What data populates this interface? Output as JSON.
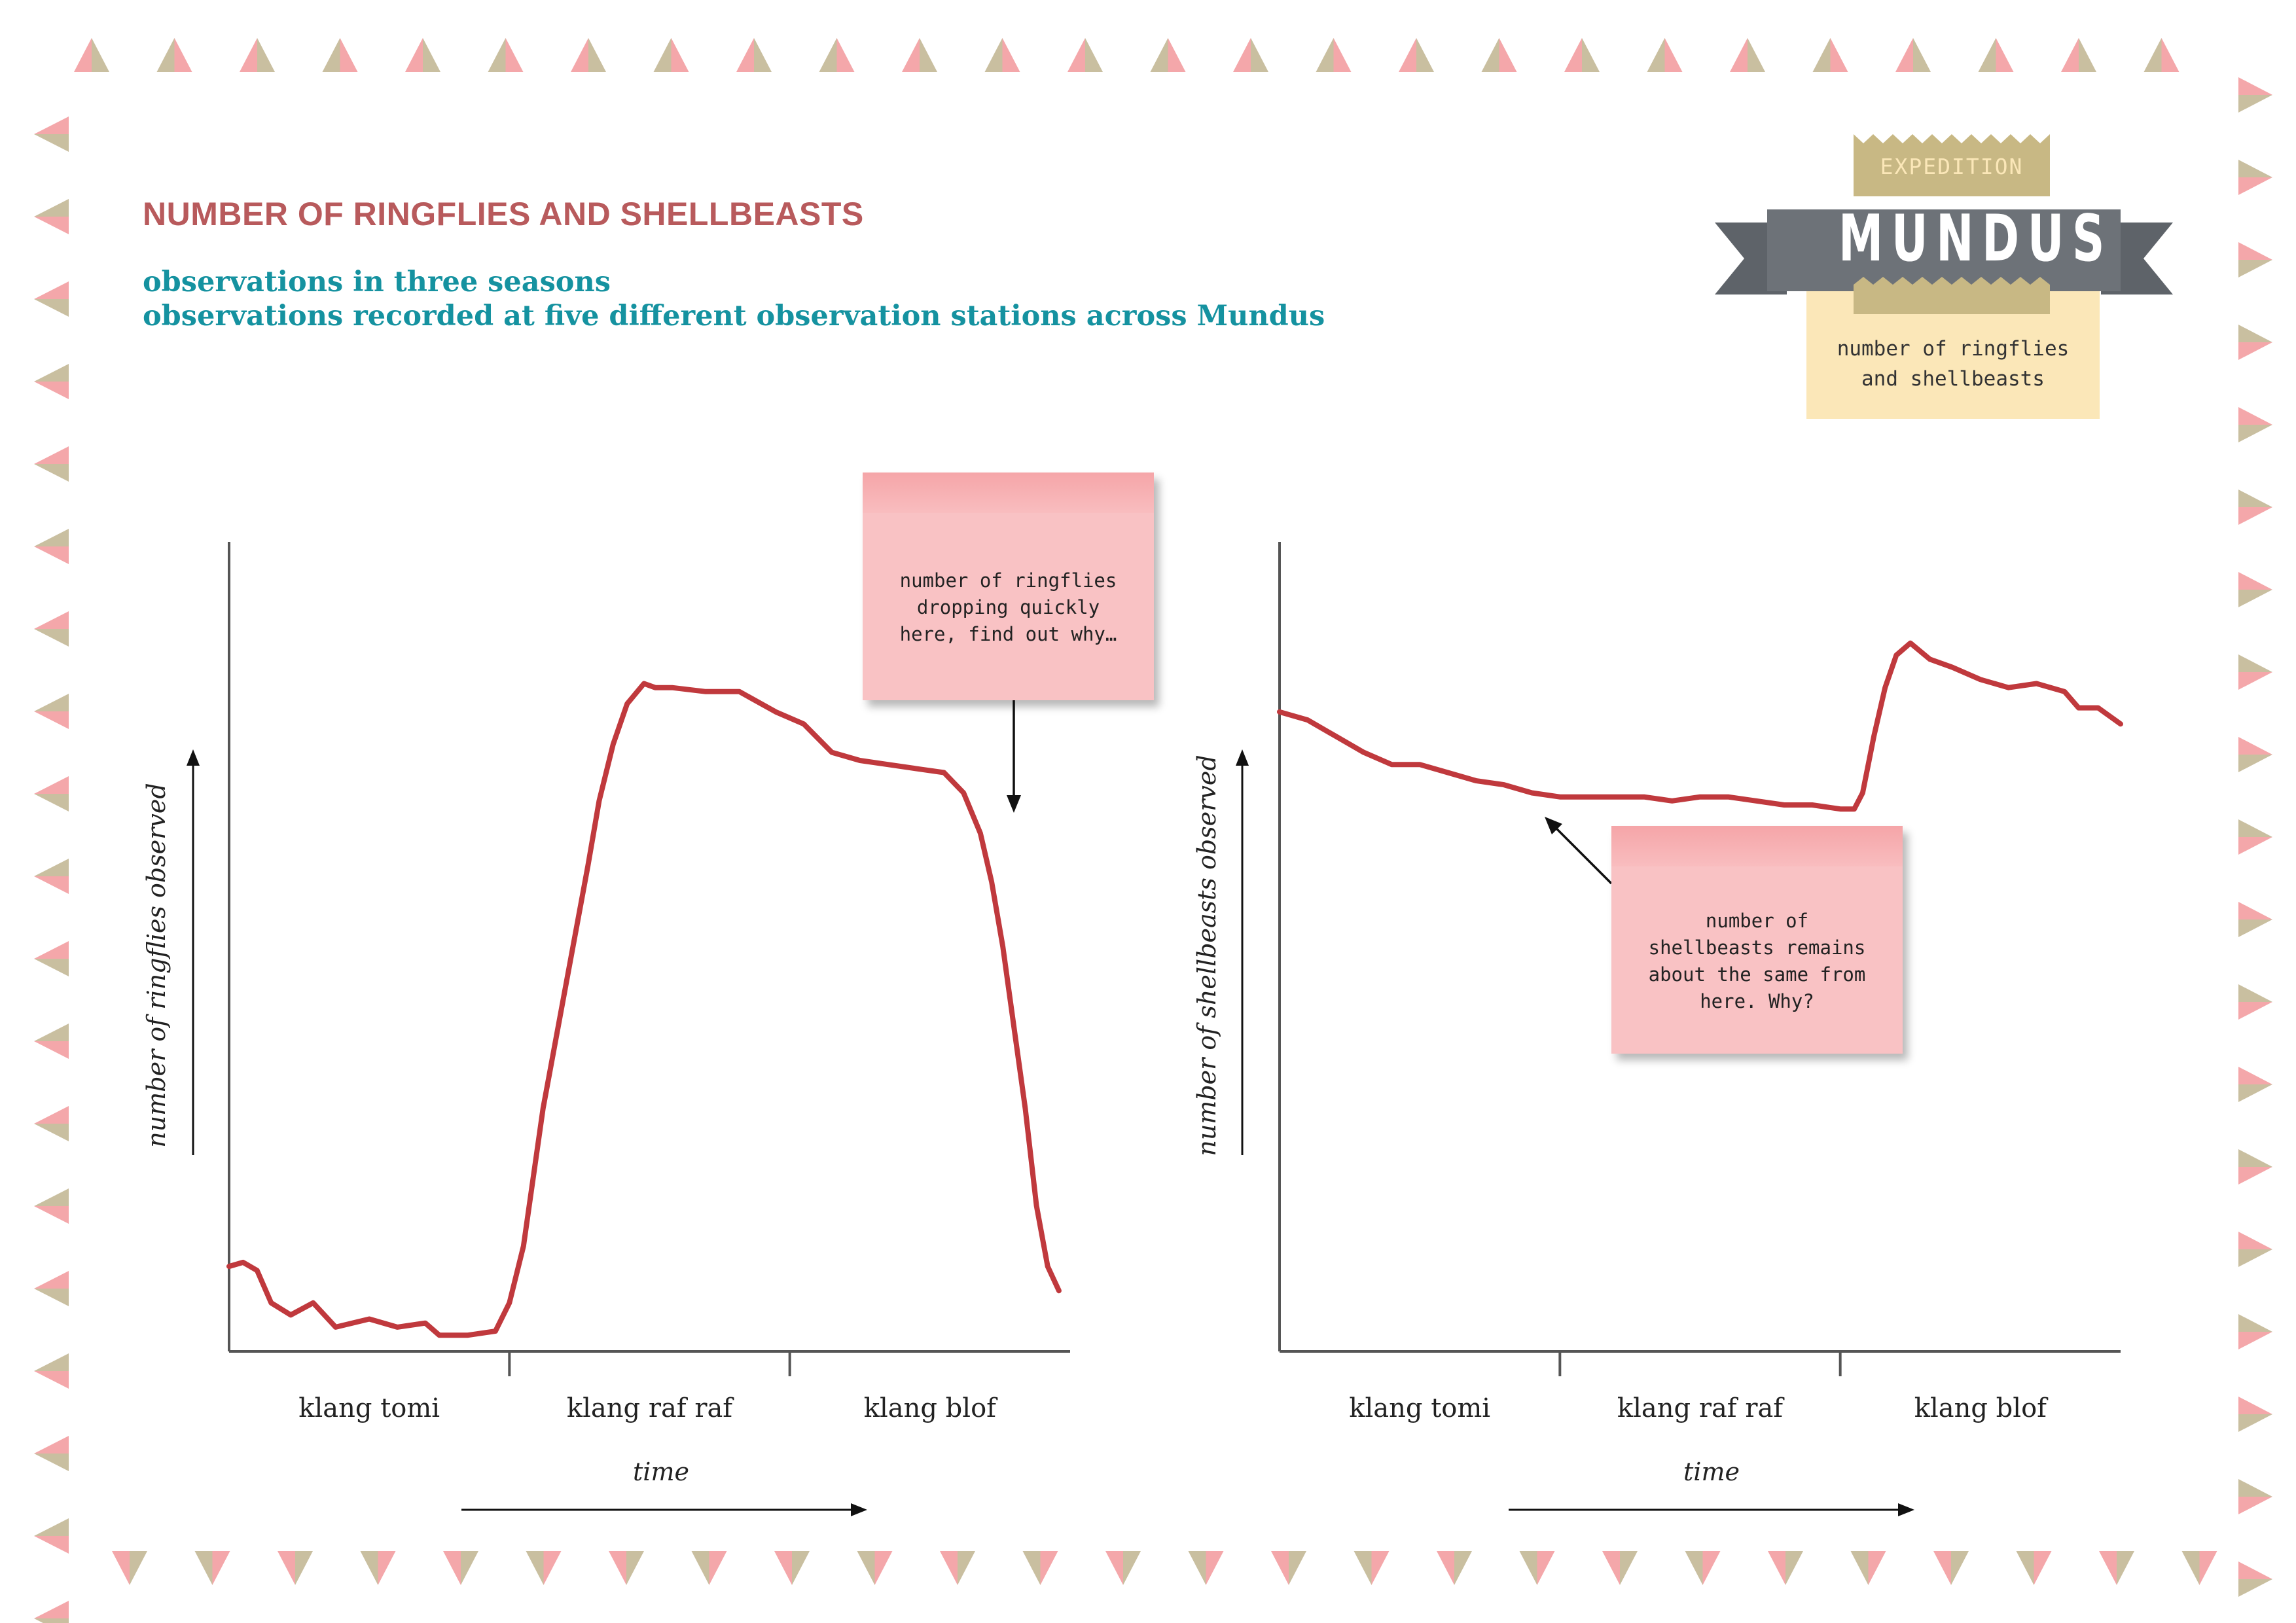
{
  "header": {
    "title": "NUMBER OF RINGFLIES AND SHELLBEASTS",
    "subtitle_lines": [
      "observations in three seasons",
      "observations recorded at five different observation stations across Mundus"
    ]
  },
  "logo": {
    "top_label": "EXPEDITION",
    "main_label": "MUNDUS",
    "description_lines": [
      "number of ringflies",
      "and shellbeasts"
    ]
  },
  "notes": {
    "left": [
      "number of ringflies",
      "dropping quickly",
      "here, find out why…"
    ],
    "right": [
      "number of",
      "shellbeasts remains",
      "about the same from",
      "here. Why?"
    ]
  },
  "colors": {
    "title": "#b85a5c",
    "subtitle": "#1592a0",
    "line": "#c0393d",
    "axis": "#555555",
    "note": "#f9c2c4",
    "ribbon": "#6d7278",
    "gold": "#c8b884",
    "border_pink": "#f4a7aa",
    "border_khaki": "#c9bfa0"
  },
  "chart_data": [
    {
      "type": "line",
      "title": "",
      "xlabel": "time",
      "ylabel": "number of ringflies observed",
      "categories": [
        "klang tomi",
        "klang raf raf",
        "klang blof"
      ],
      "xlim": [
        0,
        3
      ],
      "ylim": [
        0,
        100
      ],
      "grid": false,
      "series": [
        {
          "values": [
            [
              0.0,
              10.5
            ],
            [
              0.05,
              11.0
            ],
            [
              0.1,
              10.0
            ],
            [
              0.15,
              6.0
            ],
            [
              0.22,
              4.5
            ],
            [
              0.3,
              6.0
            ],
            [
              0.38,
              3.0
            ],
            [
              0.5,
              4.0
            ],
            [
              0.6,
              3.0
            ],
            [
              0.7,
              3.5
            ],
            [
              0.75,
              2.0
            ],
            [
              0.85,
              2.0
            ],
            [
              0.95,
              2.5
            ],
            [
              1.0,
              6.0
            ],
            [
              1.05,
              13.0
            ],
            [
              1.12,
              30.0
            ],
            [
              1.2,
              45.0
            ],
            [
              1.28,
              60.0
            ],
            [
              1.32,
              68.0
            ],
            [
              1.37,
              75.0
            ],
            [
              1.42,
              80.0
            ],
            [
              1.48,
              82.5
            ],
            [
              1.52,
              82.0
            ],
            [
              1.58,
              82.0
            ],
            [
              1.7,
              81.5
            ],
            [
              1.82,
              81.5
            ],
            [
              1.95,
              79.0
            ],
            [
              2.05,
              77.5
            ],
            [
              2.15,
              74.0
            ],
            [
              2.25,
              73.0
            ],
            [
              2.35,
              72.5
            ],
            [
              2.45,
              72.0
            ],
            [
              2.55,
              71.5
            ],
            [
              2.62,
              69.0
            ],
            [
              2.68,
              64.0
            ],
            [
              2.72,
              58.0
            ],
            [
              2.76,
              50.0
            ],
            [
              2.8,
              40.0
            ],
            [
              2.84,
              30.0
            ],
            [
              2.88,
              18.0
            ],
            [
              2.92,
              10.5
            ],
            [
              2.96,
              7.5
            ]
          ]
        }
      ]
    },
    {
      "type": "line",
      "title": "",
      "xlabel": "time",
      "ylabel": "number of shellbeasts observed",
      "categories": [
        "klang tomi",
        "klang raf raf",
        "klang blof"
      ],
      "xlim": [
        0,
        3
      ],
      "ylim": [
        0,
        100
      ],
      "grid": false,
      "series": [
        {
          "values": [
            [
              0.0,
              79.0
            ],
            [
              0.1,
              78.0
            ],
            [
              0.2,
              76.0
            ],
            [
              0.3,
              74.0
            ],
            [
              0.4,
              72.5
            ],
            [
              0.5,
              72.5
            ],
            [
              0.6,
              71.5
            ],
            [
              0.7,
              70.5
            ],
            [
              0.8,
              70.0
            ],
            [
              0.9,
              69.0
            ],
            [
              1.0,
              68.5
            ],
            [
              1.1,
              68.5
            ],
            [
              1.2,
              68.5
            ],
            [
              1.3,
              68.5
            ],
            [
              1.4,
              68.0
            ],
            [
              1.5,
              68.5
            ],
            [
              1.6,
              68.5
            ],
            [
              1.7,
              68.0
            ],
            [
              1.8,
              67.5
            ],
            [
              1.9,
              67.5
            ],
            [
              2.0,
              67.0
            ],
            [
              2.05,
              67.0
            ],
            [
              2.08,
              69.0
            ],
            [
              2.12,
              76.0
            ],
            [
              2.16,
              82.0
            ],
            [
              2.2,
              86.0
            ],
            [
              2.25,
              87.5
            ],
            [
              2.32,
              85.5
            ],
            [
              2.4,
              84.5
            ],
            [
              2.5,
              83.0
            ],
            [
              2.6,
              82.0
            ],
            [
              2.7,
              82.5
            ],
            [
              2.8,
              81.5
            ],
            [
              2.85,
              79.5
            ],
            [
              2.92,
              79.5
            ],
            [
              3.0,
              77.5
            ]
          ]
        }
      ]
    }
  ]
}
